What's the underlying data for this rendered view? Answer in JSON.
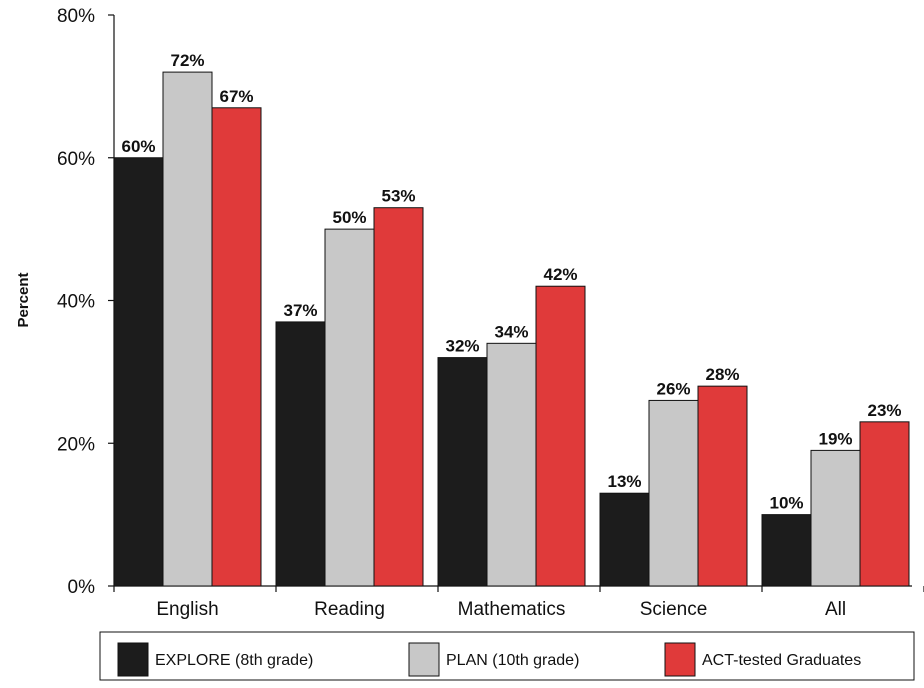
{
  "chart_data": {
    "type": "bar",
    "title": "",
    "xlabel": "",
    "ylabel": "Percent",
    "ylim": [
      0,
      80
    ],
    "yticks": [
      0,
      20,
      40,
      60,
      80
    ],
    "ytick_labels": [
      "0%",
      "20%",
      "40%",
      "60%",
      "80%"
    ],
    "categories": [
      "English",
      "Reading",
      "Mathematics",
      "Science",
      "All"
    ],
    "series": [
      {
        "name": "EXPLORE (8th grade)",
        "color": "#1c1c1c",
        "values": [
          60,
          37,
          32,
          13,
          10
        ],
        "labels": [
          "60%",
          "37%",
          "32%",
          "13%",
          "10%"
        ]
      },
      {
        "name": "PLAN (10th grade)",
        "color": "#c8c8c8",
        "values": [
          72,
          50,
          34,
          26,
          19
        ],
        "labels": [
          "72%",
          "50%",
          "34%",
          "26%",
          "19%"
        ]
      },
      {
        "name": "ACT-tested Graduates",
        "color": "#e03a3a",
        "values": [
          67,
          53,
          42,
          28,
          23
        ],
        "labels": [
          "67%",
          "53%",
          "42%",
          "28%",
          "23%"
        ]
      }
    ],
    "grid": false,
    "legend_position": "bottom"
  }
}
